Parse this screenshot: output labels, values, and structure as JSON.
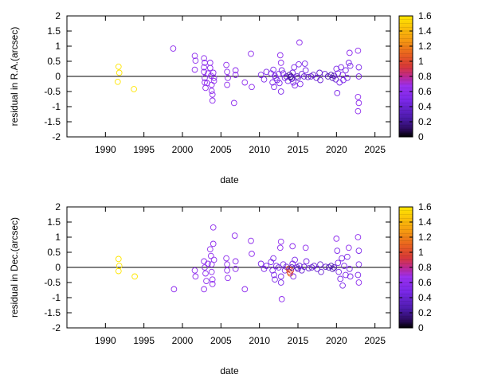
{
  "chart_data": [
    {
      "type": "scatter",
      "title": "",
      "xlabel": "date",
      "ylabel": "residual in R.A.(arcsec)",
      "xlim": [
        1985,
        2027
      ],
      "ylim": [
        -2,
        2
      ],
      "xticks": [
        "1990",
        "1995",
        "2000",
        "2005",
        "2010",
        "2015",
        "2020",
        "2025"
      ],
      "yticks": [
        "2",
        "1.5",
        "1",
        "0.5",
        "0",
        "-0.5",
        "-1",
        "-1.5",
        "-2"
      ],
      "colorbar_ticks": [
        "1.6",
        "1.4",
        "1.2",
        "1",
        "0.8",
        "0.6",
        "0.4",
        "0.2",
        "0"
      ],
      "colorbar_range": [
        0,
        1.6
      ],
      "zero_line": true,
      "colors": {
        "high": "#ffe000",
        "mid": "#d04030",
        "low": "#8a2be2",
        "zero": "#000000"
      },
      "points": [
        {
          "x": 1991.7,
          "y": 0.32,
          "c": 1.6
        },
        {
          "x": 1991.8,
          "y": 0.12,
          "c": 1.6
        },
        {
          "x": 1991.6,
          "y": -0.18,
          "c": 1.6
        },
        {
          "x": 1993.7,
          "y": -0.42,
          "c": 1.6
        },
        {
          "x": 1998.8,
          "y": 0.92,
          "c": 0.6
        },
        {
          "x": 2001.6,
          "y": 0.68,
          "c": 0.6
        },
        {
          "x": 2001.7,
          "y": 0.52,
          "c": 0.6
        },
        {
          "x": 2001.6,
          "y": 0.22,
          "c": 0.6
        },
        {
          "x": 2002.8,
          "y": 0.6,
          "c": 0.6
        },
        {
          "x": 2002.9,
          "y": 0.45,
          "c": 0.6
        },
        {
          "x": 2002.8,
          "y": 0.3,
          "c": 0.6
        },
        {
          "x": 2002.8,
          "y": 0.15,
          "c": 0.6
        },
        {
          "x": 2002.9,
          "y": -0.05,
          "c": 0.6
        },
        {
          "x": 2002.9,
          "y": -0.2,
          "c": 0.6
        },
        {
          "x": 2003.0,
          "y": -0.38,
          "c": 0.6
        },
        {
          "x": 2003.2,
          "y": -0.22,
          "c": 0.6
        },
        {
          "x": 2003.3,
          "y": 0.1,
          "c": 0.6
        },
        {
          "x": 2003.6,
          "y": 0.45,
          "c": 0.6
        },
        {
          "x": 2003.6,
          "y": 0.28,
          "c": 0.6
        },
        {
          "x": 2003.7,
          "y": 0.02,
          "c": 0.6
        },
        {
          "x": 2003.8,
          "y": -0.28,
          "c": 0.6
        },
        {
          "x": 2003.8,
          "y": -0.48,
          "c": 0.6
        },
        {
          "x": 2003.9,
          "y": -0.6,
          "c": 0.6
        },
        {
          "x": 2003.9,
          "y": -0.8,
          "c": 0.6
        },
        {
          "x": 2004.0,
          "y": 0.12,
          "c": 0.6
        },
        {
          "x": 2004.1,
          "y": -0.05,
          "c": 0.6
        },
        {
          "x": 2004.1,
          "y": -0.15,
          "c": 0.6
        },
        {
          "x": 2005.7,
          "y": 0.38,
          "c": 0.6
        },
        {
          "x": 2005.8,
          "y": 0.15,
          "c": 0.6
        },
        {
          "x": 2005.9,
          "y": -0.05,
          "c": 0.6
        },
        {
          "x": 2005.8,
          "y": -0.28,
          "c": 0.6
        },
        {
          "x": 2006.9,
          "y": 0.2,
          "c": 0.6
        },
        {
          "x": 2006.9,
          "y": 0.05,
          "c": 0.6
        },
        {
          "x": 2006.7,
          "y": -0.88,
          "c": 0.6
        },
        {
          "x": 2008.1,
          "y": -0.2,
          "c": 0.6
        },
        {
          "x": 2008.9,
          "y": 0.75,
          "c": 0.6
        },
        {
          "x": 2009.0,
          "y": -0.35,
          "c": 0.6
        },
        {
          "x": 2010.2,
          "y": 0.05,
          "c": 0.5
        },
        {
          "x": 2010.6,
          "y": -0.1,
          "c": 0.5
        },
        {
          "x": 2010.9,
          "y": 0.15,
          "c": 0.5
        },
        {
          "x": 2011.5,
          "y": 0.1,
          "c": 0.5
        },
        {
          "x": 2011.7,
          "y": -0.2,
          "c": 0.5
        },
        {
          "x": 2011.8,
          "y": 0.22,
          "c": 0.5
        },
        {
          "x": 2011.9,
          "y": -0.35,
          "c": 0.5
        },
        {
          "x": 2012.0,
          "y": 0.02,
          "c": 0.5
        },
        {
          "x": 2012.1,
          "y": -0.05,
          "c": 0.5
        },
        {
          "x": 2012.3,
          "y": -0.12,
          "c": 0.5
        },
        {
          "x": 2012.5,
          "y": 0.08,
          "c": 0.5
        },
        {
          "x": 2012.7,
          "y": 0.7,
          "c": 0.6
        },
        {
          "x": 2012.8,
          "y": 0.45,
          "c": 0.6
        },
        {
          "x": 2012.9,
          "y": 0.2,
          "c": 0.5
        },
        {
          "x": 2012.6,
          "y": -0.22,
          "c": 0.5
        },
        {
          "x": 2012.8,
          "y": -0.5,
          "c": 0.5
        },
        {
          "x": 2013.1,
          "y": 0.1,
          "c": 0.5
        },
        {
          "x": 2013.3,
          "y": -0.05,
          "c": 0.5
        },
        {
          "x": 2013.5,
          "y": 0.0,
          "c": 0.4
        },
        {
          "x": 2013.7,
          "y": -0.15,
          "c": 0.5
        },
        {
          "x": 2013.9,
          "y": 0.05,
          "c": 0.2
        },
        {
          "x": 2014.0,
          "y": -0.02,
          "c": 0.2
        },
        {
          "x": 2014.1,
          "y": 0.0,
          "c": 0.2
        },
        {
          "x": 2014.2,
          "y": -0.08,
          "c": 0.3
        },
        {
          "x": 2014.3,
          "y": 0.12,
          "c": 0.5
        },
        {
          "x": 2014.4,
          "y": -0.2,
          "c": 0.5
        },
        {
          "x": 2014.5,
          "y": 0.3,
          "c": 0.5
        },
        {
          "x": 2014.6,
          "y": -0.3,
          "c": 0.5
        },
        {
          "x": 2014.9,
          "y": 0.0,
          "c": 0.4
        },
        {
          "x": 2015.0,
          "y": -0.05,
          "c": 0.4
        },
        {
          "x": 2015.1,
          "y": 0.4,
          "c": 0.5
        },
        {
          "x": 2015.2,
          "y": 1.12,
          "c": 0.6
        },
        {
          "x": 2015.3,
          "y": -0.25,
          "c": 0.5
        },
        {
          "x": 2015.5,
          "y": 0.08,
          "c": 0.4
        },
        {
          "x": 2015.8,
          "y": 0.0,
          "c": 0.4
        },
        {
          "x": 2015.9,
          "y": 0.42,
          "c": 0.5
        },
        {
          "x": 2016.0,
          "y": 0.2,
          "c": 0.5
        },
        {
          "x": 2016.3,
          "y": -0.02,
          "c": 0.4
        },
        {
          "x": 2016.7,
          "y": 0.0,
          "c": 0.4
        },
        {
          "x": 2017.0,
          "y": 0.05,
          "c": 0.4
        },
        {
          "x": 2017.4,
          "y": -0.05,
          "c": 0.4
        },
        {
          "x": 2017.8,
          "y": 0.12,
          "c": 0.4
        },
        {
          "x": 2017.9,
          "y": -0.12,
          "c": 0.4
        },
        {
          "x": 2018.5,
          "y": 0.08,
          "c": 0.4
        },
        {
          "x": 2018.9,
          "y": 0.0,
          "c": 0.3
        },
        {
          "x": 2019.3,
          "y": 0.05,
          "c": 0.3
        },
        {
          "x": 2019.5,
          "y": -0.05,
          "c": 0.3
        },
        {
          "x": 2019.7,
          "y": 0.02,
          "c": 0.3
        },
        {
          "x": 2019.9,
          "y": -0.1,
          "c": 0.4
        },
        {
          "x": 2020.0,
          "y": 0.25,
          "c": 0.5
        },
        {
          "x": 2020.2,
          "y": 0.1,
          "c": 0.5
        },
        {
          "x": 2020.4,
          "y": -0.2,
          "c": 0.5
        },
        {
          "x": 2020.6,
          "y": 0.3,
          "c": 0.5
        },
        {
          "x": 2020.8,
          "y": 0.05,
          "c": 0.5
        },
        {
          "x": 2020.9,
          "y": -0.12,
          "c": 0.5
        },
        {
          "x": 2020.1,
          "y": -0.55,
          "c": 0.5
        },
        {
          "x": 2021.2,
          "y": 0.2,
          "c": 0.5
        },
        {
          "x": 2021.4,
          "y": -0.05,
          "c": 0.5
        },
        {
          "x": 2021.6,
          "y": 0.45,
          "c": 0.5
        },
        {
          "x": 2021.7,
          "y": 0.78,
          "c": 0.6
        },
        {
          "x": 2021.8,
          "y": 0.35,
          "c": 0.5
        },
        {
          "x": 2022.8,
          "y": 0.85,
          "c": 0.6
        },
        {
          "x": 2022.9,
          "y": 0.3,
          "c": 0.5
        },
        {
          "x": 2022.9,
          "y": 0.0,
          "c": 0.5
        },
        {
          "x": 2022.8,
          "y": -0.68,
          "c": 0.6
        },
        {
          "x": 2022.9,
          "y": -0.88,
          "c": 0.6
        },
        {
          "x": 2022.8,
          "y": -1.15,
          "c": 0.6
        }
      ]
    },
    {
      "type": "scatter",
      "title": "",
      "xlabel": "date",
      "ylabel": "residual in Dec.(arcsec)",
      "xlim": [
        1985,
        2027
      ],
      "ylim": [
        -2,
        2
      ],
      "xticks": [
        "1990",
        "1995",
        "2000",
        "2005",
        "2010",
        "2015",
        "2020",
        "2025"
      ],
      "yticks": [
        "2",
        "1.5",
        "1",
        "0.5",
        "0",
        "-0.5",
        "-1",
        "-1.5",
        "-2"
      ],
      "colorbar_ticks": [
        "1.6",
        "1.4",
        "1.2",
        "1",
        "0.8",
        "0.6",
        "0.4",
        "0.2",
        "0"
      ],
      "colorbar_range": [
        0,
        1.6
      ],
      "zero_line": true,
      "points": [
        {
          "x": 1991.7,
          "y": 0.28,
          "c": 1.6
        },
        {
          "x": 1991.8,
          "y": 0.05,
          "c": 1.6
        },
        {
          "x": 1991.7,
          "y": -0.12,
          "c": 1.6
        },
        {
          "x": 1993.8,
          "y": -0.3,
          "c": 1.6
        },
        {
          "x": 1998.9,
          "y": -0.72,
          "c": 0.6
        },
        {
          "x": 2001.6,
          "y": -0.1,
          "c": 0.6
        },
        {
          "x": 2001.7,
          "y": -0.3,
          "c": 0.6
        },
        {
          "x": 2002.8,
          "y": 0.2,
          "c": 0.6
        },
        {
          "x": 2002.9,
          "y": 0.0,
          "c": 0.6
        },
        {
          "x": 2003.0,
          "y": -0.2,
          "c": 0.6
        },
        {
          "x": 2003.1,
          "y": -0.45,
          "c": 0.6
        },
        {
          "x": 2002.8,
          "y": -0.72,
          "c": 0.6
        },
        {
          "x": 2003.3,
          "y": 0.12,
          "c": 0.6
        },
        {
          "x": 2003.6,
          "y": 0.6,
          "c": 0.6
        },
        {
          "x": 2003.7,
          "y": 0.38,
          "c": 0.6
        },
        {
          "x": 2003.8,
          "y": 0.1,
          "c": 0.6
        },
        {
          "x": 2003.8,
          "y": -0.15,
          "c": 0.6
        },
        {
          "x": 2003.9,
          "y": -0.4,
          "c": 0.6
        },
        {
          "x": 2003.9,
          "y": -0.55,
          "c": 0.6
        },
        {
          "x": 2004.0,
          "y": 1.32,
          "c": 0.6
        },
        {
          "x": 2004.0,
          "y": 0.78,
          "c": 0.6
        },
        {
          "x": 2004.1,
          "y": 0.25,
          "c": 0.6
        },
        {
          "x": 2005.7,
          "y": 0.3,
          "c": 0.6
        },
        {
          "x": 2005.8,
          "y": 0.1,
          "c": 0.6
        },
        {
          "x": 2005.8,
          "y": -0.1,
          "c": 0.6
        },
        {
          "x": 2005.9,
          "y": -0.35,
          "c": 0.6
        },
        {
          "x": 2006.8,
          "y": 1.05,
          "c": 0.6
        },
        {
          "x": 2006.9,
          "y": 0.2,
          "c": 0.6
        },
        {
          "x": 2006.9,
          "y": -0.05,
          "c": 0.6
        },
        {
          "x": 2008.1,
          "y": -0.72,
          "c": 0.6
        },
        {
          "x": 2008.9,
          "y": 0.88,
          "c": 0.6
        },
        {
          "x": 2009.0,
          "y": 0.45,
          "c": 0.6
        },
        {
          "x": 2010.2,
          "y": 0.12,
          "c": 0.5
        },
        {
          "x": 2010.6,
          "y": -0.05,
          "c": 0.5
        },
        {
          "x": 2010.9,
          "y": 0.05,
          "c": 0.5
        },
        {
          "x": 2011.5,
          "y": 0.18,
          "c": 0.5
        },
        {
          "x": 2011.7,
          "y": -0.1,
          "c": 0.5
        },
        {
          "x": 2011.8,
          "y": 0.3,
          "c": 0.5
        },
        {
          "x": 2011.9,
          "y": -0.25,
          "c": 0.5
        },
        {
          "x": 2012.0,
          "y": -0.4,
          "c": 0.5
        },
        {
          "x": 2012.2,
          "y": 0.05,
          "c": 0.5
        },
        {
          "x": 2012.5,
          "y": 0.0,
          "c": 0.5
        },
        {
          "x": 2012.7,
          "y": 0.65,
          "c": 0.6
        },
        {
          "x": 2012.8,
          "y": 0.85,
          "c": 0.6
        },
        {
          "x": 2012.8,
          "y": -0.3,
          "c": 0.5
        },
        {
          "x": 2012.8,
          "y": -0.5,
          "c": 0.5
        },
        {
          "x": 2012.9,
          "y": -1.05,
          "c": 0.6
        },
        {
          "x": 2013.1,
          "y": 0.1,
          "c": 0.5
        },
        {
          "x": 2013.3,
          "y": -0.1,
          "c": 0.5
        },
        {
          "x": 2013.5,
          "y": 0.02,
          "c": 0.4
        },
        {
          "x": 2013.8,
          "y": -0.05,
          "c": 1.0
        },
        {
          "x": 2013.9,
          "y": -0.15,
          "c": 1.0
        },
        {
          "x": 2014.0,
          "y": -0.2,
          "c": 1.1
        },
        {
          "x": 2014.1,
          "y": -0.1,
          "c": 0.9
        },
        {
          "x": 2014.2,
          "y": 0.0,
          "c": 0.3
        },
        {
          "x": 2014.3,
          "y": 0.12,
          "c": 0.5
        },
        {
          "x": 2014.4,
          "y": -0.3,
          "c": 0.5
        },
        {
          "x": 2014.3,
          "y": 0.7,
          "c": 0.6
        },
        {
          "x": 2014.6,
          "y": 0.25,
          "c": 0.5
        },
        {
          "x": 2014.9,
          "y": 0.0,
          "c": 0.4
        },
        {
          "x": 2015.0,
          "y": -0.05,
          "c": 0.4
        },
        {
          "x": 2015.2,
          "y": 0.05,
          "c": 0.4
        },
        {
          "x": 2015.5,
          "y": -0.1,
          "c": 0.4
        },
        {
          "x": 2015.8,
          "y": 0.02,
          "c": 0.4
        },
        {
          "x": 2016.0,
          "y": 0.65,
          "c": 0.6
        },
        {
          "x": 2016.1,
          "y": 0.2,
          "c": 0.5
        },
        {
          "x": 2016.4,
          "y": -0.03,
          "c": 0.4
        },
        {
          "x": 2016.8,
          "y": 0.0,
          "c": 0.4
        },
        {
          "x": 2017.1,
          "y": 0.05,
          "c": 0.4
        },
        {
          "x": 2017.5,
          "y": -0.05,
          "c": 0.4
        },
        {
          "x": 2017.9,
          "y": 0.1,
          "c": 0.4
        },
        {
          "x": 2018.0,
          "y": -0.15,
          "c": 0.4
        },
        {
          "x": 2018.6,
          "y": 0.02,
          "c": 0.4
        },
        {
          "x": 2019.0,
          "y": 0.0,
          "c": 0.3
        },
        {
          "x": 2019.3,
          "y": 0.05,
          "c": 0.3
        },
        {
          "x": 2019.5,
          "y": -0.05,
          "c": 0.3
        },
        {
          "x": 2019.7,
          "y": 0.0,
          "c": 0.3
        },
        {
          "x": 2020.0,
          "y": 0.95,
          "c": 0.6
        },
        {
          "x": 2020.1,
          "y": 0.55,
          "c": 0.5
        },
        {
          "x": 2020.2,
          "y": 0.15,
          "c": 0.5
        },
        {
          "x": 2020.3,
          "y": -0.15,
          "c": 0.5
        },
        {
          "x": 2020.5,
          "y": -0.38,
          "c": 0.5
        },
        {
          "x": 2020.7,
          "y": 0.3,
          "c": 0.5
        },
        {
          "x": 2020.8,
          "y": -0.6,
          "c": 0.5
        },
        {
          "x": 2021.0,
          "y": 0.05,
          "c": 0.5
        },
        {
          "x": 2021.2,
          "y": -0.25,
          "c": 0.5
        },
        {
          "x": 2021.4,
          "y": 0.35,
          "c": 0.5
        },
        {
          "x": 2021.6,
          "y": 0.65,
          "c": 0.6
        },
        {
          "x": 2021.7,
          "y": -0.05,
          "c": 0.5
        },
        {
          "x": 2021.8,
          "y": -0.3,
          "c": 0.5
        },
        {
          "x": 2022.8,
          "y": 1.0,
          "c": 0.6
        },
        {
          "x": 2022.9,
          "y": 0.55,
          "c": 0.5
        },
        {
          "x": 2022.9,
          "y": 0.1,
          "c": 0.5
        },
        {
          "x": 2022.8,
          "y": -0.25,
          "c": 0.5
        },
        {
          "x": 2022.9,
          "y": -0.5,
          "c": 0.6
        }
      ]
    }
  ]
}
